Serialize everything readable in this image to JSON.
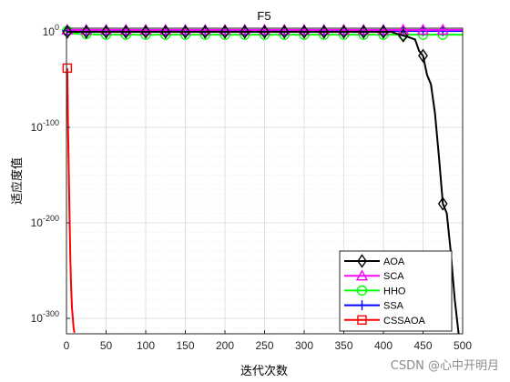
{
  "chart_data": {
    "type": "line",
    "title": "F5",
    "xlabel": "迭代次数",
    "ylabel": "适应度值",
    "xlim": [
      0,
      500
    ],
    "ylim": [
      -310,
      10
    ],
    "yscale": "log",
    "grid": true,
    "legend_position": "bottom-right",
    "xticks": [
      0,
      50,
      100,
      150,
      200,
      250,
      300,
      350,
      400,
      450,
      500
    ],
    "yticks": [
      0,
      -100,
      -200,
      -300
    ],
    "ytick_labels": [
      {
        "base": "10",
        "exp": "0"
      },
      {
        "base": "10",
        "exp": "-100"
      },
      {
        "base": "10",
        "exp": "-200"
      },
      {
        "base": "10",
        "exp": "-300"
      }
    ],
    "series": [
      {
        "name": "AOA",
        "color": "#000000",
        "marker": "diamond",
        "x": [
          1,
          25,
          50,
          75,
          100,
          125,
          150,
          175,
          200,
          225,
          250,
          275,
          300,
          325,
          350,
          375,
          400,
          410,
          420,
          430,
          440,
          445,
          450,
          455,
          460,
          465,
          470,
          475,
          480,
          485,
          490,
          495
        ],
        "y": [
          0,
          0,
          0,
          0,
          0,
          0,
          0,
          0,
          0,
          0,
          0,
          0,
          0,
          0,
          0,
          0,
          0,
          0,
          -3,
          -5,
          -8,
          -20,
          -25,
          -45,
          -55,
          -85,
          -130,
          -180,
          -190,
          -230,
          -280,
          -330
        ]
      },
      {
        "name": "SCA",
        "color": "#ff00ff",
        "marker": "triangle",
        "x": [
          1,
          500
        ],
        "y": [
          2,
          2
        ]
      },
      {
        "name": "HHO",
        "color": "#00ff00",
        "marker": "circle",
        "x": [
          1,
          10,
          50,
          100,
          200,
          300,
          400,
          500
        ],
        "y": [
          1,
          -2,
          -3,
          -3,
          -3,
          -3,
          -3,
          -3
        ]
      },
      {
        "name": "SSA",
        "color": "#0000ff",
        "marker": "plus",
        "x": [
          1,
          500
        ],
        "y": [
          1,
          1
        ]
      },
      {
        "name": "CSSAOA",
        "color": "#ff0000",
        "marker": "square",
        "x": [
          1,
          2,
          3,
          4,
          5,
          6,
          7,
          8,
          9,
          10
        ],
        "y": [
          -38,
          -100,
          -150,
          -200,
          -240,
          -270,
          -290,
          -300,
          -310,
          -315
        ]
      }
    ]
  },
  "watermark": "CSDN @心中开明月"
}
